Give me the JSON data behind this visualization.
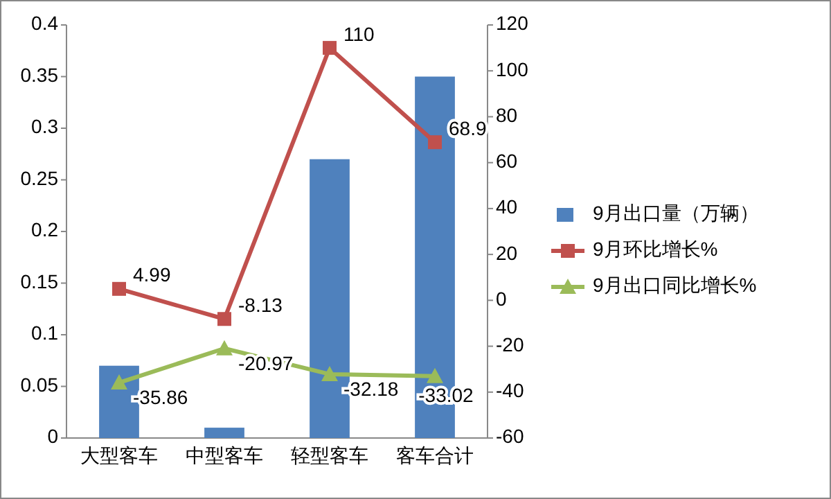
{
  "chart_data": {
    "type": "bar",
    "categories": [
      "大型客车",
      "中型客车",
      "轻型客车",
      "客车合计"
    ],
    "series": [
      {
        "name": "9月出口量（万辆）",
        "color": "#4f81bd",
        "values": [
          0.07,
          0.01,
          0.27,
          0.35
        ]
      },
      {
        "name": "9月环比增长%",
        "type": "line",
        "axis": "y2",
        "marker": "square",
        "color": "#c0504d",
        "values": [
          4.99,
          -8.13,
          110,
          68.9
        ],
        "value_labels": [
          "4.99",
          "-8.13",
          "110",
          "68.9"
        ]
      },
      {
        "name": "9月出口同比增长%",
        "type": "line",
        "axis": "y2",
        "marker": "triangle",
        "color": "#9bbb59",
        "values": [
          -35.86,
          -20.97,
          -32.18,
          -33.02
        ],
        "value_labels": [
          "-35.86",
          "-20.97",
          "-32.18",
          "-33.02"
        ]
      }
    ],
    "ylim": [
      0,
      0.4
    ],
    "yticks": [
      0,
      0.05,
      0.1,
      0.15,
      0.2,
      0.25,
      0.3,
      0.35,
      0.4
    ],
    "y2lim": [
      -60,
      120
    ],
    "y2ticks": [
      -60,
      -40,
      -20,
      0,
      20,
      40,
      60,
      80,
      100,
      120
    ],
    "legend": "right"
  }
}
